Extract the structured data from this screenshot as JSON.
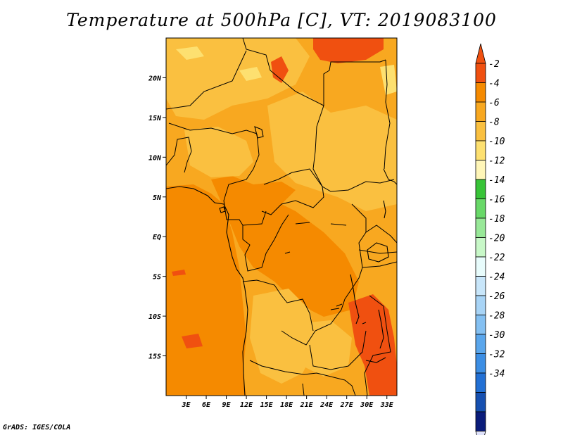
{
  "title": "Temperature at 500hPa [C], VT: 2019083100",
  "credit": "GrADS: IGES/COLA",
  "map": {
    "lon_range": [
      0,
      34.5
    ],
    "lat_range": [
      -20,
      25
    ],
    "y_ticks": [
      {
        "lat": 20,
        "label": "20N"
      },
      {
        "lat": 15,
        "label": "15N"
      },
      {
        "lat": 10,
        "label": "10N"
      },
      {
        "lat": 5,
        "label": "5N"
      },
      {
        "lat": 0,
        "label": "EQ"
      },
      {
        "lat": -5,
        "label": "5S"
      },
      {
        "lat": -10,
        "label": "10S"
      },
      {
        "lat": -15,
        "label": "15S"
      }
    ],
    "x_ticks": [
      {
        "lon": 3,
        "label": "3E"
      },
      {
        "lon": 6,
        "label": "6E"
      },
      {
        "lon": 9,
        "label": "9E"
      },
      {
        "lon": 12,
        "label": "12E"
      },
      {
        "lon": 15,
        "label": "15E"
      },
      {
        "lon": 18,
        "label": "18E"
      },
      {
        "lon": 21,
        "label": "21E"
      },
      {
        "lon": 24,
        "label": "24E"
      },
      {
        "lon": 27,
        "label": "27E"
      },
      {
        "lon": 30,
        "label": "30E"
      },
      {
        "lon": 33,
        "label": "33E"
      }
    ]
  },
  "colorbar": {
    "bins": [
      {
        "color": "#f05010"
      },
      {
        "color": "#f58a00"
      },
      {
        "color": "#f8a820"
      },
      {
        "color": "#fac040"
      },
      {
        "color": "#fde070"
      },
      {
        "color": "#fff6b8"
      },
      {
        "color": "#38c438"
      },
      {
        "color": "#68d868"
      },
      {
        "color": "#98e898"
      },
      {
        "color": "#c8f8c8"
      },
      {
        "color": "#e8fcfc"
      },
      {
        "color": "#c8e6fa"
      },
      {
        "color": "#a8d4f6"
      },
      {
        "color": "#84c0f2"
      },
      {
        "color": "#5aa6ec"
      },
      {
        "color": "#3c8ee4"
      },
      {
        "color": "#2270d4"
      },
      {
        "color": "#1650b0"
      },
      {
        "color": "#0a1c7a"
      }
    ],
    "labels": [
      "-2",
      "-4",
      "-6",
      "-8",
      "-10",
      "-12",
      "-14",
      "-16",
      "-18",
      "-20",
      "-22",
      "-24",
      "-26",
      "-28",
      "-30",
      "-32",
      "-34"
    ],
    "top_arrow_color": "#f05010",
    "bottom_arrow_color": "#dfe2fb"
  },
  "field_colors": {
    "base": "#f8a820",
    "warm": "#f58a00",
    "cool": "#fac040",
    "cooler": "#fde070",
    "hot": "#f05010"
  }
}
